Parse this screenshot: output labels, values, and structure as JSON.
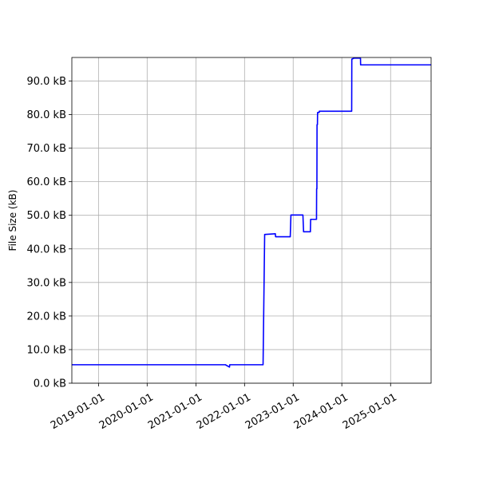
{
  "chart_data": {
    "type": "line",
    "title": "",
    "xlabel": "",
    "ylabel": "File Size (kB)",
    "x_type": "date",
    "xlim": [
      "2018-06-15",
      "2025-11-01"
    ],
    "ylim": [
      0,
      97
    ],
    "grid": true,
    "line_color": "#0000ff",
    "x_ticks": [
      "2019-01-01",
      "2020-01-01",
      "2021-01-01",
      "2022-01-01",
      "2023-01-01",
      "2024-01-01",
      "2025-01-01"
    ],
    "y_ticks": [
      0,
      10,
      20,
      30,
      40,
      50,
      60,
      70,
      80,
      90
    ],
    "y_tick_labels": [
      "0.0 kB",
      "10.0 kB",
      "20.0 kB",
      "30.0 kB",
      "40.0 kB",
      "50.0 kB",
      "60.0 kB",
      "70.0 kB",
      "80.0 kB",
      "90.0 kB"
    ],
    "series": [
      {
        "x": [
          "2018-06-15",
          "2021-08-10",
          "2021-09-10",
          "2021-09-12",
          "2022-05-20",
          "2022-06-01",
          "2022-08-20",
          "2022-08-22",
          "2022-12-10",
          "2022-12-15",
          "2023-03-15",
          "2023-03-20",
          "2023-05-10",
          "2023-05-12",
          "2023-06-25",
          "2023-06-26",
          "2023-06-28",
          "2023-06-29",
          "2023-07-02",
          "2023-07-03",
          "2023-07-15",
          "2023-07-16",
          "2024-03-15",
          "2024-03-16",
          "2024-04-01",
          "2024-04-15",
          "2024-05-20",
          "2024-05-21",
          "2025-11-01"
        ],
        "y": [
          5.5,
          5.5,
          4.8,
          5.5,
          5.5,
          44.3,
          44.5,
          43.6,
          43.6,
          50.1,
          50.1,
          45.1,
          45.1,
          48.8,
          48.8,
          57.9,
          57.9,
          77.0,
          77.0,
          80.6,
          80.6,
          81.0,
          81.0,
          96.5,
          96.8,
          96.8,
          96.8,
          94.8,
          94.8
        ]
      }
    ]
  }
}
